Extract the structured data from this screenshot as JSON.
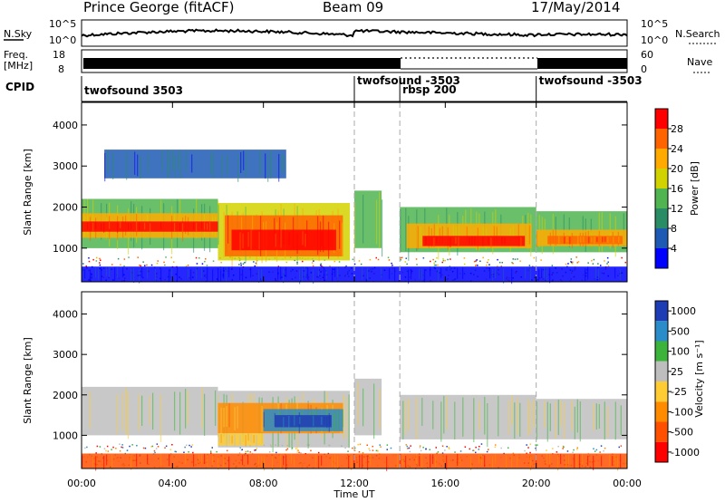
{
  "header": {
    "title": "Prince George (fitACF)",
    "beam": "Beam 09",
    "date": "17/May/2014"
  },
  "labels": {
    "nsky": "N.Sky",
    "nsearch": "N.Search",
    "freq_line1": "Freq.",
    "freq_line2": "[MHz]",
    "nave": "Nave",
    "cpid": "CPID",
    "noise_left_ticks": [
      "10^5",
      "10^0"
    ],
    "noise_right_ticks": [
      "10^5",
      "10^0"
    ],
    "freq_left_ticks": [
      "18",
      "8"
    ],
    "nave_right_ticks": [
      "60",
      "0"
    ]
  },
  "cpid_segments": [
    {
      "label": "twofsound 3503",
      "start_hour": 0
    },
    {
      "label": "twofsound -3503",
      "start_hour": 12
    },
    {
      "label": "rbsp 200",
      "start_hour": 14
    },
    {
      "label": "twofsound -3503",
      "start_hour": 20
    }
  ],
  "colors": {
    "power": [
      "#0000ff",
      "#1e5ab4",
      "#2a8c64",
      "#50b450",
      "#d2d200",
      "#ffaa00",
      "#ff6400",
      "#ff0000"
    ],
    "velocity": [
      "#1e3cb4",
      "#2a8cc8",
      "#3cb43c",
      "#bebebe",
      "#ffcc33",
      "#ff8c00",
      "#ff5000",
      "#ff0000"
    ],
    "dashed_line": "#aaaaaa"
  },
  "chart_data": [
    {
      "type": "heatmap",
      "name": "power",
      "ylabel": "Slant Range [km]",
      "xlabel": "",
      "x_ticks": [
        "00:00",
        "04:00",
        "08:00",
        "12:00",
        "16:00",
        "20:00",
        "00:00"
      ],
      "xlim_hours": [
        0,
        24
      ],
      "y_ticks": [
        1000,
        2000,
        3000,
        4000
      ],
      "ylim_km": [
        180,
        4550
      ],
      "colorbar": {
        "label": "Power [dB]",
        "ticks": [
          4,
          8,
          12,
          16,
          20,
          24,
          28
        ],
        "range": [
          0,
          32
        ]
      },
      "vertical_markers_hours": [
        12,
        14,
        20
      ],
      "bands": [
        {
          "t0": 0.0,
          "t1": 6.0,
          "y_lo": 1000,
          "y_hi": 2200,
          "level": 3
        },
        {
          "t0": 0.0,
          "t1": 6.0,
          "y_lo": 1250,
          "y_hi": 1850,
          "level": 5
        },
        {
          "t0": 0.0,
          "t1": 6.0,
          "y_lo": 1400,
          "y_hi": 1650,
          "level": 7
        },
        {
          "t0": 6.0,
          "t1": 11.8,
          "y_lo": 700,
          "y_hi": 2100,
          "level": 4
        },
        {
          "t0": 6.3,
          "t1": 11.5,
          "y_lo": 800,
          "y_hi": 1800,
          "level": 6
        },
        {
          "t0": 6.6,
          "t1": 11.2,
          "y_lo": 950,
          "y_hi": 1450,
          "level": 7
        },
        {
          "t0": 12.0,
          "t1": 13.2,
          "y_lo": 1000,
          "y_hi": 2400,
          "level": 3
        },
        {
          "t0": 14.0,
          "t1": 20.0,
          "y_lo": 900,
          "y_hi": 2000,
          "level": 3
        },
        {
          "t0": 14.3,
          "t1": 19.8,
          "y_lo": 1000,
          "y_hi": 1600,
          "level": 5
        },
        {
          "t0": 15.0,
          "t1": 19.5,
          "y_lo": 1050,
          "y_hi": 1300,
          "level": 7
        },
        {
          "t0": 20.0,
          "t1": 24.0,
          "y_lo": 900,
          "y_hi": 1900,
          "level": 3
        },
        {
          "t0": 20.0,
          "t1": 24.0,
          "y_lo": 1050,
          "y_hi": 1450,
          "level": 5
        },
        {
          "t0": 20.5,
          "t1": 23.8,
          "y_lo": 1100,
          "y_hi": 1300,
          "level": 6
        },
        {
          "t0": 1.0,
          "t1": 9.0,
          "y_lo": 2700,
          "y_hi": 3400,
          "level": 1
        },
        {
          "t0": 0.0,
          "t1": 24.0,
          "y_lo": 180,
          "y_hi": 550,
          "level": 0
        }
      ]
    },
    {
      "type": "heatmap",
      "name": "velocity",
      "ylabel": "Slant Range [km]",
      "xlabel": "Time UT",
      "x_ticks": [
        "00:00",
        "04:00",
        "08:00",
        "12:00",
        "16:00",
        "20:00",
        "00:00"
      ],
      "xlim_hours": [
        0,
        24
      ],
      "y_ticks": [
        1000,
        2000,
        3000,
        4000
      ],
      "ylim_km": [
        180,
        4550
      ],
      "colorbar": {
        "label": "Velocity [m s⁻¹]",
        "ticks": [
          1000,
          500,
          100,
          25,
          -25,
          -100,
          -500,
          -1000
        ]
      },
      "vertical_markers_hours": [
        12,
        14,
        20
      ],
      "bands": [
        {
          "t0": 0.0,
          "t1": 6.0,
          "y_lo": 1000,
          "y_hi": 2200,
          "level": 3
        },
        {
          "t0": 6.0,
          "t1": 11.8,
          "y_lo": 700,
          "y_hi": 2100,
          "level": 3
        },
        {
          "t0": 6.0,
          "t1": 11.5,
          "y_lo": 1050,
          "y_hi": 1800,
          "level": 5
        },
        {
          "t0": 8.0,
          "t1": 11.5,
          "y_lo": 1100,
          "y_hi": 1650,
          "level": 1
        },
        {
          "t0": 8.5,
          "t1": 11.0,
          "y_lo": 1200,
          "y_hi": 1500,
          "level": 0
        },
        {
          "t0": 6.0,
          "t1": 8.0,
          "y_lo": 750,
          "y_hi": 1050,
          "level": 4
        },
        {
          "t0": 12.0,
          "t1": 13.2,
          "y_lo": 1000,
          "y_hi": 2400,
          "level": 3
        },
        {
          "t0": 14.0,
          "t1": 20.0,
          "y_lo": 900,
          "y_hi": 2000,
          "level": 3
        },
        {
          "t0": 20.0,
          "t1": 24.0,
          "y_lo": 900,
          "y_hi": 1900,
          "level": 3
        },
        {
          "t0": 0.0,
          "t1": 24.0,
          "y_lo": 180,
          "y_hi": 550,
          "level": 6
        }
      ]
    }
  ]
}
